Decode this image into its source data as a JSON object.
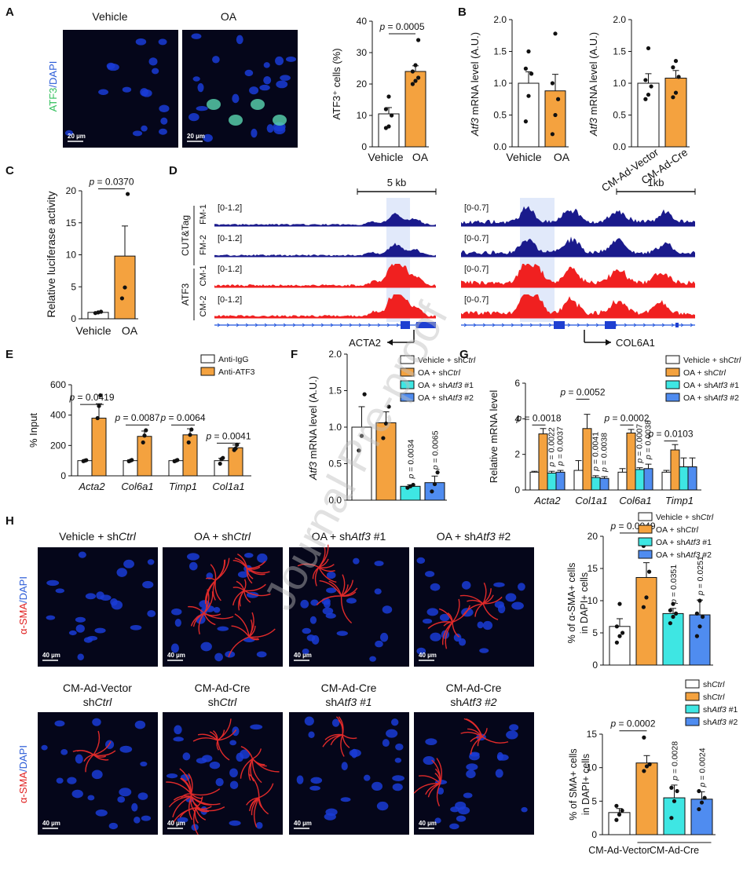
{
  "colors": {
    "orange": "#f4a23f",
    "cyan": "#3ee6e3",
    "blue": "#4f8cf0",
    "navy": "#1a1a8c",
    "red": "#f02020",
    "white": "#ffffff",
    "cellBlue": "#1a3cd6",
    "cellRed": "#e02a2a",
    "cellGreen": "#2fbf5a"
  },
  "watermark": "Journal Pre-proof",
  "panelA": {
    "label": "A",
    "images": [
      {
        "title": "Vehicle",
        "scale": "20 µm"
      },
      {
        "title": "OA",
        "scale": "20 µm"
      }
    ],
    "stain": [
      "ATF3",
      "/DAPI"
    ]
  },
  "panelB": {
    "label": "B"
  },
  "panelC": {
    "label": "C"
  },
  "panelD": {
    "label": "D",
    "left": {
      "scale": "5 kb",
      "gene": "ACTA2",
      "tracks": [
        {
          "name": "FM-1",
          "range": "[0-1.2]"
        },
        {
          "name": "FM-2",
          "range": "[0-1.2]"
        },
        {
          "name": "CM-1",
          "range": "[0-1.2]"
        },
        {
          "name": "CM-2",
          "range": "[0-1.2]"
        }
      ]
    },
    "right": {
      "scale": "1kb",
      "gene": "COL6A1",
      "tracks": [
        {
          "name": "FM-1",
          "range": "[0-0.7]"
        },
        {
          "name": "FM-2",
          "range": "[0-0.7]"
        },
        {
          "name": "CM-1",
          "range": "[0-0.7]"
        },
        {
          "name": "CM-2",
          "range": "[0-0.7]"
        }
      ]
    },
    "methodLabels": [
      "CUT&Tag",
      "ATF3"
    ]
  },
  "panelE": {
    "label": "E"
  },
  "panelF": {
    "label": "F"
  },
  "panelG": {
    "label": "G"
  },
  "panelH": {
    "label": "H",
    "stain": [
      "α-SMA",
      "/DAPI"
    ],
    "row1": {
      "titles": [
        [
          "Vehicle + sh",
          "Ctrl",
          ""
        ],
        [
          "OA + sh",
          "Ctrl",
          ""
        ],
        [
          "OA + sh",
          "Atf3",
          " #1"
        ],
        [
          "OA + sh",
          "Atf3",
          " #2"
        ]
      ],
      "scale": "40 µm"
    },
    "row2": {
      "titles": [
        [
          "CM-Ad-Vector",
          "sh",
          "Ctrl"
        ],
        [
          "CM-Ad-Cre",
          "sh",
          "Ctrl"
        ],
        [
          "CM-Ad-Cre",
          "sh",
          "Atf3 #1"
        ],
        [
          "CM-Ad-Cre",
          "sh",
          "Atf3 #2"
        ]
      ],
      "scale": "40 µm"
    }
  },
  "chart_data": [
    {
      "id": "A-bar",
      "type": "bar",
      "ylabel": "ATF3⁺ cells (%)",
      "ylim": [
        0,
        40
      ],
      "yticks": [
        0,
        10,
        20,
        30,
        40
      ],
      "categories": [
        "Vehicle",
        "OA"
      ],
      "values": [
        10.5,
        24
      ],
      "errors": [
        2,
        1.8
      ],
      "colors": [
        "#ffffff",
        "#f4a23f"
      ],
      "points": [
        [
          6,
          6.5,
          10,
          12,
          16
        ],
        [
          20,
          21,
          22,
          24,
          26,
          34
        ]
      ],
      "annotations": [
        {
          "text": "p = 0.0005",
          "from": 0,
          "to": 1,
          "y": 36
        }
      ]
    },
    {
      "id": "B-1",
      "type": "bar",
      "ylabel": "Atf3 mRNA level (A.U.)",
      "ylim": [
        0,
        2.0
      ],
      "yticks": [
        0.0,
        0.5,
        1.0,
        1.5,
        2.0
      ],
      "categories": [
        "Vehicle",
        "OA"
      ],
      "values": [
        1.0,
        0.88
      ],
      "errors": [
        0.18,
        0.26
      ],
      "colors": [
        "#ffffff",
        "#f4a23f"
      ],
      "points": [
        [
          0.4,
          0.8,
          1.15,
          1.23,
          1.5
        ],
        [
          0.2,
          0.5,
          0.75,
          1.0,
          1.78
        ]
      ]
    },
    {
      "id": "B-2",
      "type": "bar",
      "ylabel": "Atf3 mRNA level (A.U.)",
      "ylim": [
        0,
        2.0
      ],
      "yticks": [
        0.0,
        0.5,
        1.0,
        1.5,
        2.0
      ],
      "categories": [
        "CM-Ad-Vector",
        "CM-Ad-Cre"
      ],
      "values": [
        1.0,
        1.08
      ],
      "errors": [
        0.15,
        0.12
      ],
      "colors": [
        "#ffffff",
        "#f4a23f"
      ],
      "points": [
        [
          0.75,
          0.82,
          0.95,
          1.05,
          1.55
        ],
        [
          0.78,
          0.85,
          1.1,
          1.25,
          1.35
        ]
      ]
    },
    {
      "id": "C",
      "type": "bar",
      "ylabel": "Relative luciferase activity",
      "ylim": [
        0,
        20
      ],
      "yticks": [
        0,
        5,
        10,
        15,
        20
      ],
      "categories": [
        "Vehicle",
        "OA"
      ],
      "values": [
        1.0,
        9.8
      ],
      "errors": [
        0.05,
        4.7
      ],
      "colors": [
        "#ffffff",
        "#f4a23f"
      ],
      "points": [
        [
          0.9,
          1.0,
          1.1
        ],
        [
          3.2,
          4.9,
          19.5
        ]
      ],
      "annotations": [
        {
          "text": "p = 0.0370",
          "from": 0,
          "to": 1,
          "y": 20.3
        }
      ]
    },
    {
      "id": "E",
      "type": "bar",
      "ylabel": "% Input",
      "ylim": [
        0,
        600
      ],
      "yticks": [
        0,
        200,
        400,
        600
      ],
      "categories": [
        "Acta2",
        "Col6a1",
        "Timp1",
        "Col1a1"
      ],
      "series": [
        {
          "name": "Anti-IgG",
          "color": "#ffffff",
          "values": [
            100,
            100,
            100,
            100
          ],
          "errors": [
            3,
            5,
            5,
            15
          ]
        },
        {
          "name": "Anti-ATF3",
          "color": "#f4a23f",
          "values": [
            380,
            260,
            270,
            185
          ],
          "errors": [
            95,
            35,
            40,
            18
          ]
        }
      ],
      "points": [
        [
          [
            97,
            100,
            103
          ],
          [
            380,
            460,
            530
          ]
        ],
        [
          [
            96,
            100,
            104
          ],
          [
            220,
            265,
            300
          ]
        ],
        [
          [
            96,
            100,
            104
          ],
          [
            220,
            270,
            305
          ]
        ],
        [
          [
            80,
            110,
            118
          ],
          [
            170,
            180,
            205
          ]
        ]
      ],
      "annotations": [
        {
          "text": "p = 0.0419",
          "cat": 0,
          "y": 470
        },
        {
          "text": "p = 0.0087",
          "cat": 1,
          "y": 335
        },
        {
          "text": "p = 0.0064",
          "cat": 2,
          "y": 335
        },
        {
          "text": "p = 0.0041",
          "cat": 3,
          "y": 215
        }
      ]
    },
    {
      "id": "F",
      "type": "bar",
      "ylabel": "Atf3 mRNA level (A.U.)",
      "ylim": [
        0,
        2.0
      ],
      "yticks": [
        0.0,
        0.5,
        1.0,
        1.5,
        2.0
      ],
      "categories": [
        "Vehicle + shCtrl",
        "OA + shCtrl",
        "OA + shAtf3 #1",
        "OA + shAtf3 #2"
      ],
      "values": [
        1.0,
        1.06,
        0.19,
        0.24
      ],
      "errors": [
        0.28,
        0.15,
        0.02,
        0.09
      ],
      "colors": [
        "#ffffff",
        "#f4a23f",
        "#3ee6e3",
        "#4f8cf0"
      ],
      "points": [
        [
          0.68,
          0.88,
          1.45
        ],
        [
          0.85,
          1.05,
          1.28
        ],
        [
          0.17,
          0.19,
          0.21
        ],
        [
          0.12,
          0.22,
          0.38
        ]
      ],
      "annotations": [
        {
          "text": "p = 0.0034",
          "bar": 2
        },
        {
          "text": "p = 0.0065",
          "bar": 3
        }
      ]
    },
    {
      "id": "G",
      "type": "bar",
      "ylabel": "Relative mRNA level",
      "ylim": [
        0,
        6
      ],
      "yticks": [
        0,
        2,
        4,
        6
      ],
      "categories": [
        "Acta2",
        "Col1a1",
        "Col6a1",
        "Timp1"
      ],
      "series": [
        {
          "name": "Vehicle + shCtrl",
          "color": "#ffffff",
          "values": [
            1.0,
            1.1,
            1.0,
            1.0
          ],
          "errors": [
            0.05,
            0.55,
            0.2,
            0.1
          ]
        },
        {
          "name": "OA + shCtrl",
          "color": "#f4a23f",
          "values": [
            3.15,
            3.45,
            3.2,
            2.25
          ],
          "errors": [
            0.3,
            0.8,
            0.2,
            0.3
          ]
        },
        {
          "name": "OA + shAtf3 #1",
          "color": "#3ee6e3",
          "values": [
            0.95,
            0.7,
            1.15,
            1.3
          ],
          "errors": [
            0.1,
            0.1,
            0.1,
            0.5
          ]
        },
        {
          "name": "OA + shAtf3 #2",
          "color": "#4f8cf0",
          "values": [
            1.0,
            0.65,
            1.2,
            1.3
          ],
          "errors": [
            0.1,
            0.1,
            0.25,
            0.5
          ]
        }
      ],
      "annotations": [
        {
          "text": "p = 0.0018",
          "cat": 0,
          "y": 3.65
        },
        {
          "text": "p = 0.0052",
          "cat": 1,
          "y": 5.1
        },
        {
          "text": "p = 0.0002",
          "cat": 2,
          "y": 3.65
        },
        {
          "text": "p = 0.0103",
          "cat": 3,
          "y": 2.75
        },
        {
          "text": "p = 0.0022",
          "cat": 0,
          "bar": 2
        },
        {
          "text": "p = 0.0037",
          "cat": 0,
          "bar": 3
        },
        {
          "text": "p = 0.0041",
          "cat": 1,
          "bar": 2
        },
        {
          "text": "p = 0.0038",
          "cat": 1,
          "bar": 3
        },
        {
          "text": "p = 0.0007",
          "cat": 2,
          "bar": 2
        },
        {
          "text": "p = 0.0038",
          "cat": 2,
          "bar": 3
        }
      ]
    },
    {
      "id": "H-1",
      "type": "bar",
      "ylabel": [
        "% of α-SMA+ cells",
        "in DAPI+ cells"
      ],
      "ylim": [
        0,
        20
      ],
      "yticks": [
        0,
        5,
        10,
        15,
        20
      ],
      "categories": [
        "Vehicle + shCtrl",
        "OA + shCtrl",
        "OA + shAtf3 #1",
        "OA + shAtf3 #2"
      ],
      "values": [
        6.0,
        13.6,
        8.0,
        7.8
      ],
      "errors": [
        1.2,
        2.3,
        0.8,
        2.3
      ],
      "colors": [
        "#ffffff",
        "#f4a23f",
        "#3ee6e3",
        "#4f8cf0"
      ],
      "points": [
        [
          3.5,
          4.5,
          5.0,
          6.0,
          9.5
        ],
        [
          9.0,
          10.5,
          14.5,
          18.5,
          19.0
        ],
        [
          6.5,
          7.5,
          8.0,
          8.5,
          9.5
        ],
        [
          4.5,
          6.0,
          7.5,
          8.0,
          10.0
        ]
      ],
      "annotations": [
        {
          "text": "p = 0.0049",
          "from": 0,
          "to": 1,
          "y": 20.5
        },
        {
          "text": "p = 0.0351",
          "bar": 2
        },
        {
          "text": "p = 0.0251",
          "bar": 3
        }
      ]
    },
    {
      "id": "H-2",
      "type": "bar",
      "ylabel": [
        "% of SMA+ cells",
        "in DAPI+ cells"
      ],
      "ylim": [
        0,
        15
      ],
      "yticks": [
        0,
        5,
        10,
        15
      ],
      "categories": [
        "shCtrl",
        "shCtrl",
        "shAtf3 #1",
        "shAtf3 #2"
      ],
      "groups": [
        {
          "name": "CM-Ad-Vector",
          "bars": [
            0
          ]
        },
        {
          "name": "CM-Ad-Cre",
          "bars": [
            1,
            2,
            3
          ]
        }
      ],
      "values": [
        3.3,
        10.7,
        5.5,
        5.3
      ],
      "errors": [
        0.6,
        1.1,
        1.9,
        1.1
      ],
      "colors": [
        "#ffffff",
        "#f4a23f",
        "#3ee6e3",
        "#4f8cf0"
      ],
      "points": [
        [
          2.2,
          3.0,
          3.6,
          4.3
        ],
        [
          9.5,
          10.2,
          10.5,
          14.5
        ],
        [
          2.5,
          5.0,
          6.5,
          7.0
        ],
        [
          3.8,
          4.8,
          5.5,
          6.5
        ]
      ],
      "annotations": [
        {
          "text": "p = 0.0002",
          "from": 0,
          "to": 1,
          "y": 15.5
        },
        {
          "text": "p = 0.0028",
          "bar": 2
        },
        {
          "text": "p = 0.0024",
          "bar": 3
        }
      ]
    }
  ]
}
